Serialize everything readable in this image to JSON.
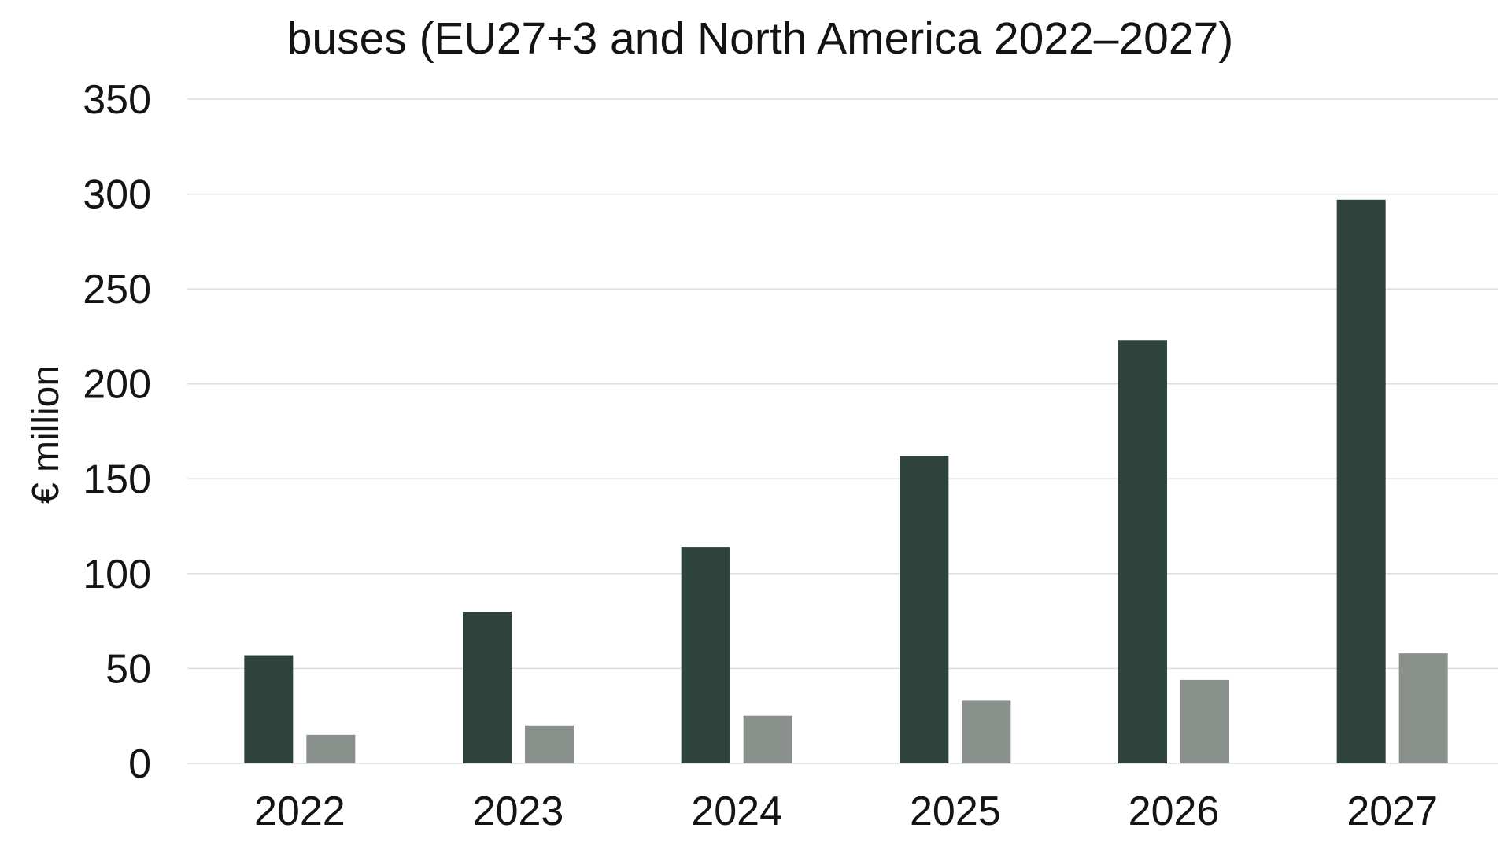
{
  "chart_data": {
    "type": "bar",
    "title": "buses (EU27+3 and North America 2022–2027)",
    "xlabel": "",
    "ylabel": "€ million",
    "categories": [
      "2022",
      "2023",
      "2024",
      "2025",
      "2026",
      "2027"
    ],
    "series": [
      {
        "values": [
          57,
          80,
          114,
          162,
          223,
          297
        ],
        "color": "#2f433d"
      },
      {
        "values": [
          15,
          20,
          25,
          33,
          44,
          58
        ],
        "color": "#8a918d"
      }
    ],
    "ylim": [
      0,
      350
    ],
    "yticks": [
      0,
      50,
      100,
      150,
      200,
      250,
      300,
      350
    ],
    "grid": true,
    "legend": "none"
  }
}
